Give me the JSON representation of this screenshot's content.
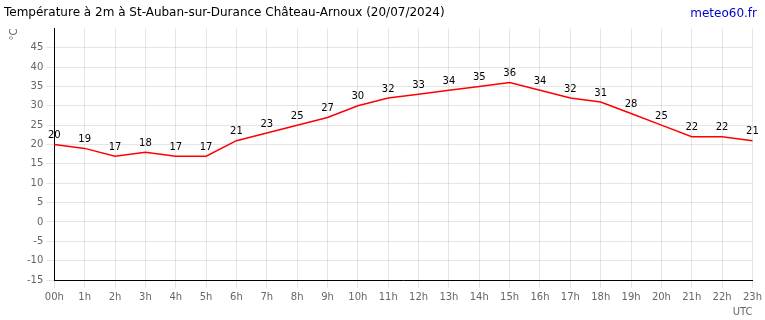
{
  "chart_data": {
    "type": "line",
    "title": "Température à 2m à St-Auban-sur-Durance Château-Arnoux (20/07/2024)",
    "xlabel": "UTC",
    "ylabel": "°C",
    "categories": [
      "00h",
      "1h",
      "2h",
      "3h",
      "4h",
      "5h",
      "6h",
      "7h",
      "8h",
      "9h",
      "10h",
      "11h",
      "12h",
      "13h",
      "14h",
      "15h",
      "16h",
      "17h",
      "18h",
      "19h",
      "20h",
      "21h",
      "22h",
      "23h"
    ],
    "values": [
      20,
      19,
      17,
      18,
      17,
      17,
      21,
      23,
      25,
      27,
      30,
      32,
      33,
      34,
      35,
      36,
      34,
      32,
      31,
      28,
      25,
      22,
      22,
      21
    ],
    "color": "#ff0000",
    "ylim": [
      -15,
      50
    ],
    "yticks": [
      -15,
      -10,
      -5,
      0,
      5,
      10,
      15,
      20,
      25,
      30,
      35,
      40,
      45
    ],
    "grid": true,
    "data_labels": true,
    "annotations": [
      {
        "text": "meteo60.fr",
        "color": "#0000cc"
      }
    ]
  }
}
